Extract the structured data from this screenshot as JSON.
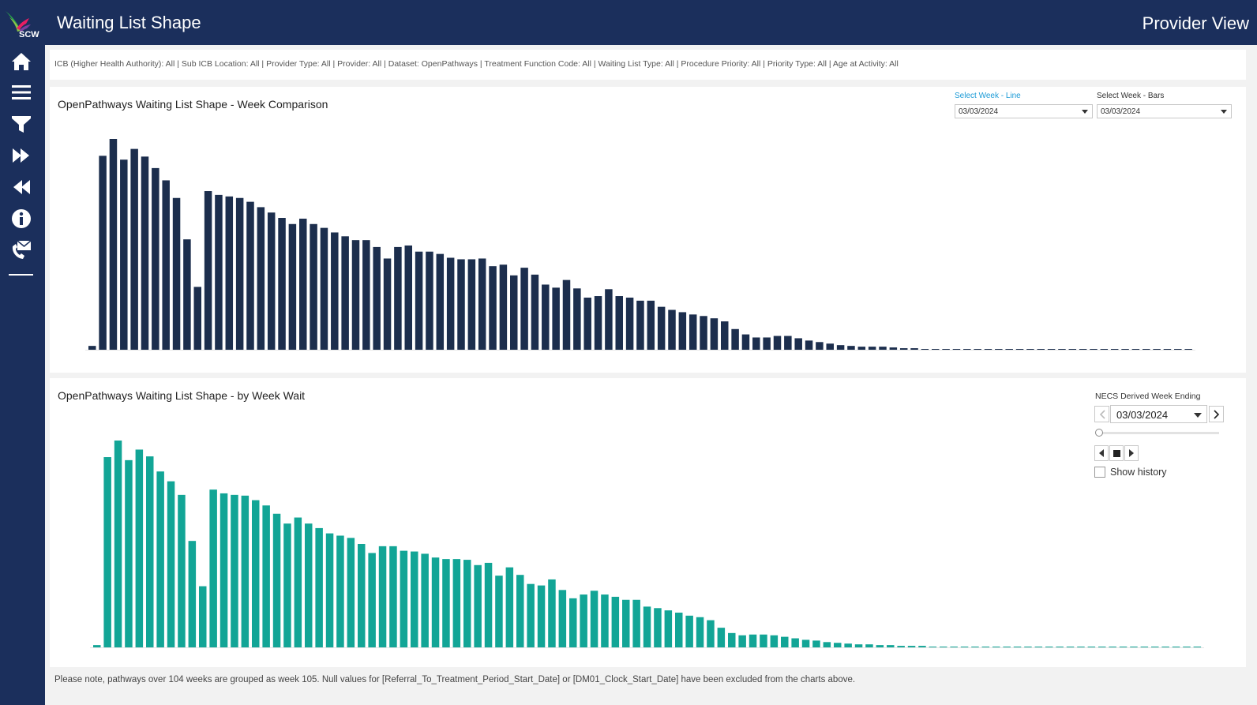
{
  "header": {
    "title": "Waiting List Shape",
    "view": "Provider View",
    "logo_text": "SCW"
  },
  "sidebar": {
    "items": [
      {
        "icon": "home-icon"
      },
      {
        "icon": "menu-icon"
      },
      {
        "icon": "filter-icon"
      },
      {
        "icon": "fast-forward-icon"
      },
      {
        "icon": "rewind-icon"
      },
      {
        "icon": "info-icon"
      },
      {
        "icon": "contact-icon"
      }
    ]
  },
  "filters": {
    "text": "ICB (Higher Health Authority): All | Sub ICB Location: All | Provider Type: All | Provider: All | Dataset: OpenPathways | Treatment Function Code: All | Waiting List Type: All | Procedure Priority: All | Priority Type: All | Age at Activity: All"
  },
  "top_panel": {
    "title": "OpenPathways Waiting List Shape - Week Comparison",
    "line_label": "Select Week - Line",
    "line_value": "03/03/2024",
    "bars_label": "Select Week - Bars",
    "bars_value": "03/03/2024"
  },
  "bottom_panel": {
    "title": "OpenPathways Waiting List Shape - by Week Wait",
    "page_label": "NECS Derived Week Ending",
    "page_value": "03/03/2024",
    "show_history": "Show history"
  },
  "footer": {
    "note": "Please note, pathways over 104 weeks are grouped as week 105. Null values for [Referral_To_Treatment_Period_Start_Date] or [DM01_Clock_Start_Date] have been excluded from the charts above."
  },
  "colors": {
    "navy": "#1b2f5c",
    "bar_top": "#1c2e4d",
    "bar_bottom": "#12a596"
  },
  "chart_data": [
    {
      "type": "bar",
      "title": "OpenPathways Waiting List Shape - Week Comparison",
      "series": [
        {
          "values": [
            0.5,
            25.3,
            27.5,
            24.8,
            26.2,
            25.2,
            23.7,
            22.1,
            19.8,
            14.4,
            8.2,
            20.7,
            20.2,
            20.0,
            19.8,
            19.3,
            18.6,
            17.9,
            17.2,
            16.4,
            17.1,
            16.4,
            15.9,
            15.3,
            14.8,
            14.3,
            14.3,
            13.4,
            11.9,
            13.4,
            13.6,
            12.8,
            12.8,
            12.5,
            12.0,
            11.8,
            11.8,
            11.9,
            10.9,
            11.1,
            9.7,
            10.7,
            9.8,
            8.5,
            8.1,
            9.1,
            8.0,
            6.8,
            7.0,
            7.9,
            7.0,
            6.8,
            6.4,
            6.4,
            5.6,
            5.2,
            4.9,
            4.6,
            4.4,
            4.1,
            3.7,
            2.7,
            2.0,
            1.6,
            1.6,
            1.8,
            1.8,
            1.5,
            1.2,
            1.0,
            0.8,
            0.6,
            0.5,
            0.4,
            0.4,
            0.4,
            0.3,
            0.2,
            0.2,
            0.1,
            0.1,
            0.1,
            0.1,
            0.05,
            0.05,
            0.05,
            0.05,
            0.05,
            0.05,
            0.05,
            0.05,
            0.05,
            0.05,
            0.05,
            0.05,
            0.05,
            0.05,
            0.05,
            0.05,
            0.05,
            0.05,
            0.05,
            0.05,
            0.05,
            0.05
          ]
        }
      ]
    },
    {
      "type": "bar",
      "title": "OpenPathways Waiting List Shape - by Week Wait",
      "series": [
        {
          "values": [
            0.3,
            25.2,
            27.4,
            24.8,
            26.2,
            25.3,
            23.3,
            22.0,
            20.2,
            14.1,
            8.1,
            20.9,
            20.4,
            20.2,
            20.1,
            19.5,
            18.8,
            17.7,
            16.4,
            17.2,
            16.4,
            15.8,
            15.1,
            14.8,
            14.5,
            13.7,
            12.5,
            13.4,
            13.4,
            12.8,
            12.7,
            12.4,
            11.9,
            11.7,
            11.7,
            11.6,
            10.9,
            11.2,
            9.5,
            10.6,
            9.6,
            8.4,
            8.2,
            9.0,
            7.6,
            6.5,
            7.0,
            7.5,
            7.0,
            6.7,
            6.3,
            6.3,
            5.4,
            5.2,
            4.9,
            4.6,
            4.2,
            4.0,
            3.6,
            2.6,
            1.9,
            1.6,
            1.7,
            1.7,
            1.6,
            1.4,
            1.2,
            1.0,
            0.9,
            0.7,
            0.6,
            0.5,
            0.4,
            0.4,
            0.3,
            0.3,
            0.2,
            0.2,
            0.2,
            0.1,
            0.1,
            0.1,
            0.1,
            0.05,
            0.05,
            0.05,
            0.05,
            0.05,
            0.05,
            0.05,
            0.05,
            0.05,
            0.05,
            0.05,
            0.05,
            0.05,
            0.05,
            0.05,
            0.05,
            0.05,
            0.05,
            0.05,
            0.05,
            0.05,
            0.05
          ]
        }
      ]
    }
  ]
}
